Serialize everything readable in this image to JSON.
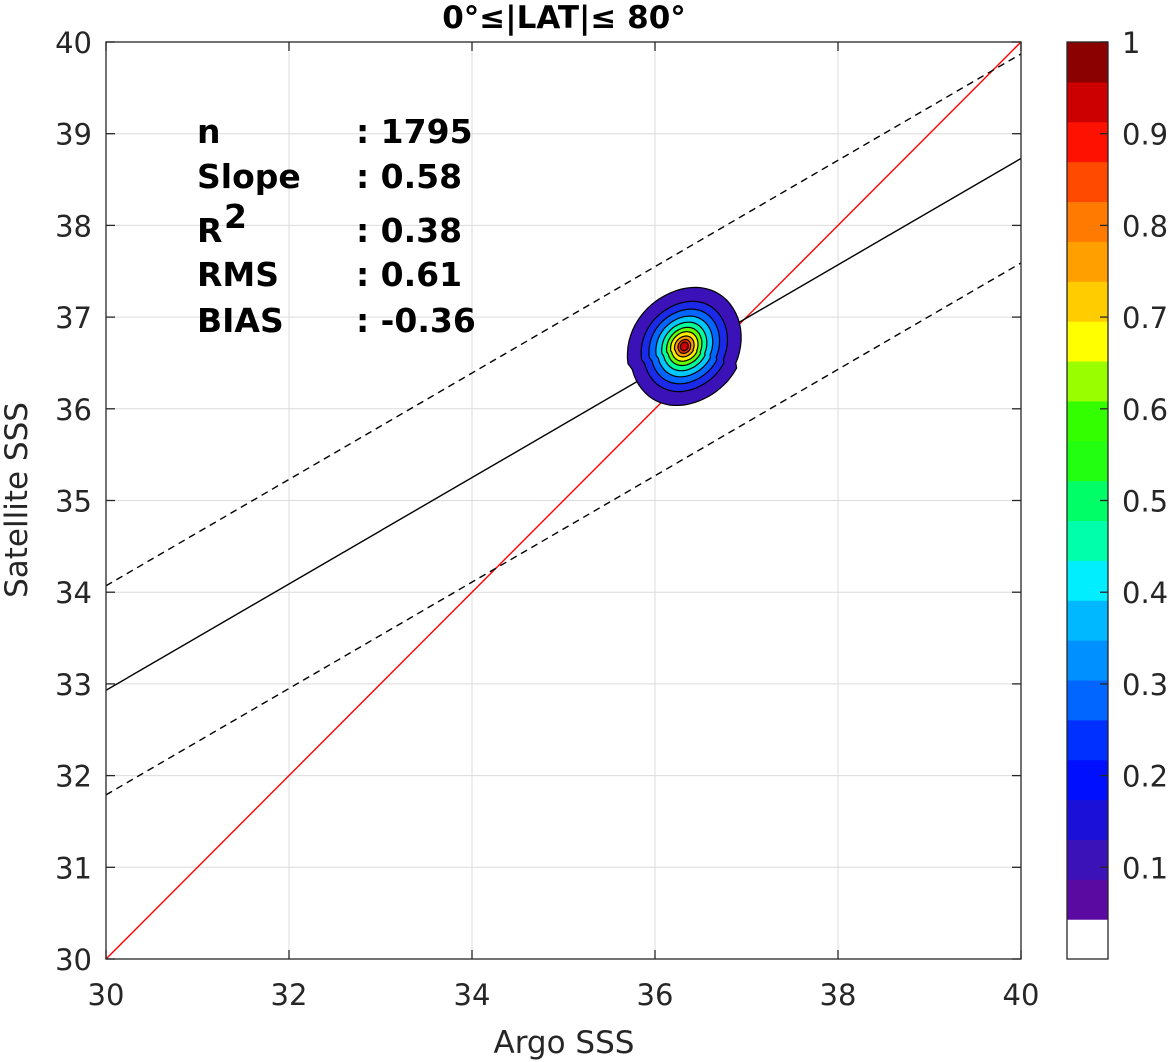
{
  "chart_data": {
    "type": "scatter",
    "title": "0°≤|LAT|≤ 80°",
    "xlabel": "Argo SSS",
    "ylabel": "Satellite SSS",
    "xlim": [
      30,
      40
    ],
    "ylim": [
      30,
      40
    ],
    "x_ticks": [
      "30",
      "32",
      "34",
      "36",
      "38",
      "40"
    ],
    "y_ticks": [
      "30",
      "31",
      "32",
      "33",
      "34",
      "35",
      "36",
      "37",
      "38",
      "39",
      "40"
    ],
    "grid": true,
    "stats": [
      {
        "label": "n",
        "value": ": 1795"
      },
      {
        "label": "Slope",
        "value": ": 0.58"
      },
      {
        "label": "R",
        "sup": "2",
        "value": ": 0.38"
      },
      {
        "label": "RMS",
        "value": ": 0.61"
      },
      {
        "label": "BIAS",
        "value": ": -0.36"
      }
    ],
    "lines": [
      {
        "kind": "one-to-one",
        "color": "#ff0000",
        "dash": false,
        "points": [
          [
            30,
            30
          ],
          [
            40,
            40
          ]
        ]
      },
      {
        "kind": "regression",
        "color": "#000000",
        "dash": false,
        "points": [
          [
            30,
            32.93
          ],
          [
            40,
            38.73
          ]
        ]
      },
      {
        "kind": "upper-bound",
        "color": "#000000",
        "dash": true,
        "points": [
          [
            30,
            34.07
          ],
          [
            40,
            39.87
          ]
        ]
      },
      {
        "kind": "lower-bound",
        "color": "#000000",
        "dash": true,
        "points": [
          [
            30,
            31.79
          ],
          [
            40,
            37.59
          ]
        ]
      }
    ],
    "density_contours": {
      "center": [
        36.32,
        36.68
      ],
      "levels": [
        {
          "level": 0.05,
          "rx": 0.58,
          "ry": 0.68,
          "color": "#3a12b8"
        },
        {
          "level": 0.15,
          "rx": 0.44,
          "ry": 0.52,
          "color": "#1a2ae8"
        },
        {
          "level": 0.25,
          "rx": 0.36,
          "ry": 0.43,
          "color": "#0066ff"
        },
        {
          "level": 0.35,
          "rx": 0.29,
          "ry": 0.35,
          "color": "#00c8ff"
        },
        {
          "level": 0.45,
          "rx": 0.23,
          "ry": 0.28,
          "color": "#00ff99"
        },
        {
          "level": 0.55,
          "rx": 0.18,
          "ry": 0.22,
          "color": "#66ff00"
        },
        {
          "level": 0.65,
          "rx": 0.14,
          "ry": 0.17,
          "color": "#ffee00"
        },
        {
          "level": 0.75,
          "rx": 0.1,
          "ry": 0.12,
          "color": "#ff9900"
        },
        {
          "level": 0.85,
          "rx": 0.065,
          "ry": 0.08,
          "color": "#ff3300"
        },
        {
          "level": 0.95,
          "rx": 0.04,
          "ry": 0.05,
          "color": "#cc0000"
        }
      ]
    },
    "colorbar": {
      "range": [
        0,
        1
      ],
      "tick_labels": [
        "0.1",
        "0.2",
        "0.3",
        "0.4",
        "0.5",
        "0.6",
        "0.7",
        "0.8",
        "0.9",
        "1"
      ],
      "tick_values": [
        0.1,
        0.2,
        0.3,
        0.4,
        0.5,
        0.6,
        0.7,
        0.8,
        0.9,
        1.0
      ],
      "colors": [
        "#ffffff",
        "#5a0aa0",
        "#3a12b8",
        "#1a10d8",
        "#0010ff",
        "#0030ff",
        "#0066ff",
        "#0090ff",
        "#00b8ff",
        "#00eeff",
        "#00ffaa",
        "#00ff66",
        "#22ff11",
        "#33ff00",
        "#99ff00",
        "#ffff00",
        "#ffcc00",
        "#ffa000",
        "#ff7a00",
        "#ff4a00",
        "#ff1100",
        "#cc0000",
        "#8b0000"
      ]
    }
  }
}
